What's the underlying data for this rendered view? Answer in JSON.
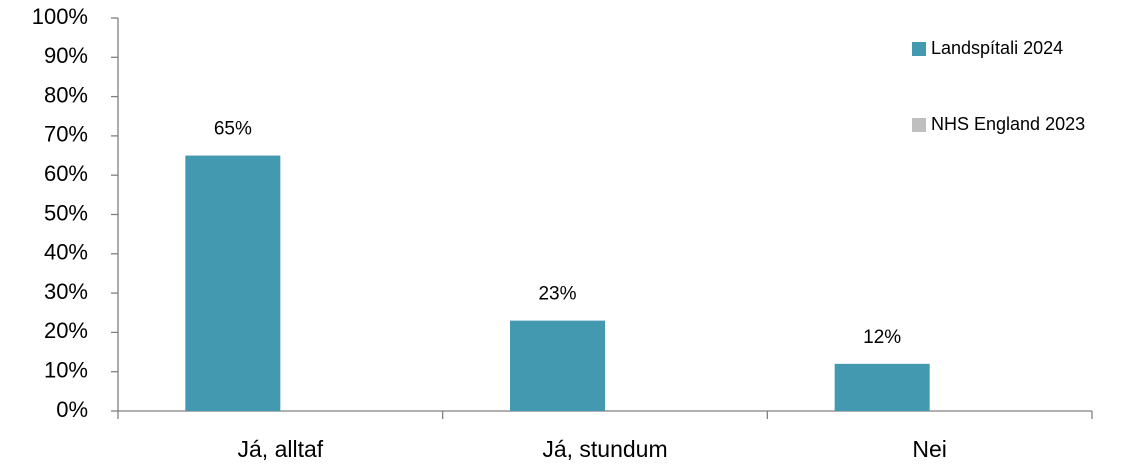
{
  "chart_data": {
    "type": "bar",
    "categories": [
      "Já, alltaf",
      "Já, stundum",
      "Nei"
    ],
    "series": [
      {
        "name": "Landspítali 2024",
        "color": "#4299b0",
        "values": [
          65,
          23,
          12
        ],
        "value_labels": [
          "65%",
          "23%",
          "12%"
        ]
      },
      {
        "name": "NHS England 2023",
        "color": "#bfbfbf",
        "values": [
          null,
          null,
          null
        ]
      }
    ],
    "ylim": [
      0,
      100
    ],
    "yticks": [
      {
        "value": 0,
        "label": "0%"
      },
      {
        "value": 10,
        "label": "10%"
      },
      {
        "value": 20,
        "label": "20%"
      },
      {
        "value": 30,
        "label": "30%"
      },
      {
        "value": 40,
        "label": "40%"
      },
      {
        "value": 50,
        "label": "50%"
      },
      {
        "value": 60,
        "label": "60%"
      },
      {
        "value": 70,
        "label": "70%"
      },
      {
        "value": 80,
        "label": "80%"
      },
      {
        "value": 90,
        "label": "90%"
      },
      {
        "value": 100,
        "label": "100%"
      }
    ],
    "grid": false,
    "legend": "top-right"
  }
}
